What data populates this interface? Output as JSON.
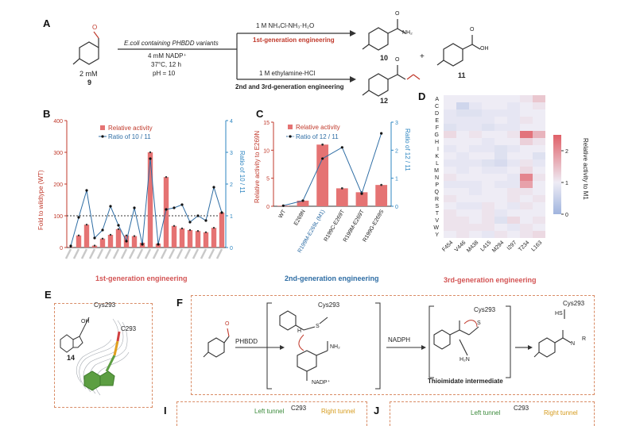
{
  "panel_labels": {
    "a": "A",
    "b": "B",
    "c": "C",
    "d": "D",
    "e": "E",
    "f": "F",
    "i": "I",
    "j": "J"
  },
  "panel_a": {
    "reactant_conc": "2 mM",
    "reactant_num": "9",
    "cond1": "E.coli containing PHBDD variants",
    "cond2": "4 mM NADP⁺",
    "cond3": "37°C, 12 h",
    "cond4": "pH = 10",
    "top_reagent": "1 M NH₄Cl-NH₃·H₂O",
    "top_label": "1st-generation engineering",
    "bottom_reagent": "1 M ethylamine-HCl",
    "bottom_label": "2nd and 3rd-generation engineering",
    "product_10": "10",
    "product_11": "11",
    "product_12": "12",
    "plus": "+",
    "nh2": "NH₂",
    "oh": "OH",
    "o": "O"
  },
  "panel_b": {
    "footer": "1st-generation engineering",
    "legend_bar": "Relative activity",
    "legend_line": "Ratio of 10 / 11",
    "ylabel_left": "Fold to wildtype (WT)",
    "ylabel_right": "Ratio of 10 / 11",
    "left_ticks": [
      "0",
      "100",
      "200",
      "300",
      "400"
    ],
    "right_ticks": [
      "0",
      "1",
      "2",
      "3",
      "4"
    ]
  },
  "panel_c": {
    "footer": "2nd-generation engineering",
    "legend_bar": "Relative activity",
    "legend_line": "Ratio of 12 / 11",
    "ylabel_left": "Relative activity to E269N",
    "ylabel_right": "Ratio of 12 / 11",
    "left_ticks": [
      "0",
      "5",
      "10",
      "15"
    ],
    "right_ticks": [
      "0",
      "1",
      "2",
      "3"
    ]
  },
  "panel_d": {
    "footer": "3rd-generation engineering",
    "colorbar_label": "Relative activity to M1",
    "colorbar_ticks": [
      "0",
      "1",
      "2"
    ]
  },
  "panel_e": {
    "compound": "14",
    "residue": "C293",
    "cys": "Cys293",
    "oh": "OH"
  },
  "panel_f": {
    "enzyme": "PHBDD",
    "cofactor": "NADPH",
    "nadp": "NADP⁺",
    "intermediate": "Thioimidate intermediate",
    "cys": "Cys293",
    "nh2": "NH₂",
    "o": "O",
    "h": "H",
    "s": "S",
    "hs": "HS",
    "r": "R",
    "h2n": "H₂N",
    "n_h": "N"
  },
  "panel_i": {
    "left": "Left tunnel",
    "residue": "C293",
    "right": "Right tunnel"
  },
  "panel_j": {
    "left": "Left tunnel",
    "residue": "C293",
    "right": "Right tunnel"
  },
  "chart_data": [
    {
      "type": "bar",
      "title": "",
      "ylabel": "Fold to wildtype (WT)",
      "y2label": "Ratio of 10 / 11",
      "ylim": [
        0,
        400
      ],
      "y2lim": [
        0,
        4
      ],
      "reference_line": 100,
      "categories_note": "x tick labels unreadable in source",
      "series": [
        {
          "name": "Relative activity",
          "kind": "bar",
          "values": [
            2,
            38,
            72,
            6,
            28,
            40,
            58,
            38,
            36,
            15,
            300,
            12,
            222,
            68,
            60,
            55,
            52,
            48,
            62,
            110
          ]
        },
        {
          "name": "Ratio of 10 / 11",
          "kind": "line",
          "values": [
            0.05,
            0.95,
            1.8,
            0.3,
            0.55,
            1.3,
            0.7,
            0.2,
            1.25,
            0.1,
            2.8,
            0.1,
            1.2,
            1.25,
            1.35,
            0.8,
            1.0,
            0.85,
            1.9,
            1.1
          ]
        }
      ]
    },
    {
      "type": "bar",
      "title": "",
      "ylabel": "Relative activity to E269N",
      "y2label": "Ratio of 12 / 11",
      "ylim": [
        0,
        15
      ],
      "y2lim": [
        0,
        3
      ],
      "categories": [
        "WT",
        "E269N",
        "R199M-E269L (M1)",
        "R199C-E269T",
        "R199M-E269T",
        "R199G-E269S"
      ],
      "series": [
        {
          "name": "Relative activity",
          "kind": "bar",
          "values": [
            0.1,
            1.0,
            11.0,
            3.2,
            2.5,
            3.8
          ]
        },
        {
          "name": "Ratio of 12 / 11",
          "kind": "line",
          "values": [
            0.02,
            0.2,
            1.7,
            2.1,
            0.45,
            2.6
          ]
        }
      ]
    },
    {
      "type": "heatmap",
      "title": "",
      "ylabel": "",
      "colorbar_label": "Relative activity to M1",
      "x": [
        "F454",
        "V446",
        "M438",
        "L415",
        "M294",
        "I297",
        "T234",
        "L163"
      ],
      "y": [
        "A",
        "C",
        "D",
        "E",
        "F",
        "G",
        "H",
        "I",
        "K",
        "L",
        "M",
        "N",
        "P",
        "Q",
        "R",
        "S",
        "T",
        "V",
        "W",
        "Y"
      ],
      "values": [
        [
          1.0,
          1.0,
          1.0,
          1.0,
          1.0,
          1.0,
          1.1,
          1.4
        ],
        [
          1.0,
          0.6,
          0.9,
          1.0,
          1.0,
          0.9,
          1.0,
          1.1
        ],
        [
          0.9,
          0.8,
          0.8,
          0.9,
          0.9,
          0.9,
          1.0,
          1.0
        ],
        [
          0.9,
          0.9,
          0.9,
          0.9,
          1.0,
          0.9,
          1.1,
          1.0
        ],
        [
          0.8,
          0.9,
          0.9,
          0.8,
          0.9,
          0.9,
          1.0,
          1.0
        ],
        [
          1.2,
          1.0,
          1.1,
          1.0,
          1.0,
          1.1,
          2.3,
          1.6
        ],
        [
          1.0,
          1.0,
          1.0,
          0.9,
          1.0,
          1.0,
          1.3,
          1.1
        ],
        [
          0.9,
          1.0,
          0.9,
          0.9,
          0.8,
          0.9,
          1.0,
          1.0
        ],
        [
          1.0,
          0.9,
          1.0,
          1.0,
          0.8,
          1.0,
          1.0,
          0.8
        ],
        [
          0.9,
          0.9,
          0.9,
          0.8,
          0.7,
          0.9,
          1.1,
          0.9
        ],
        [
          1.0,
          0.9,
          1.0,
          0.9,
          0.9,
          1.0,
          1.2,
          1.0
        ],
        [
          1.1,
          1.0,
          1.0,
          1.0,
          1.0,
          0.9,
          2.1,
          1.1
        ],
        [
          0.9,
          0.9,
          0.9,
          1.0,
          0.9,
          0.9,
          1.8,
          1.0
        ],
        [
          1.0,
          1.0,
          0.9,
          1.0,
          1.0,
          1.1,
          1.1,
          1.0
        ],
        [
          1.1,
          1.0,
          1.0,
          1.0,
          1.0,
          1.1,
          1.0,
          1.1
        ],
        [
          1.0,
          0.9,
          0.9,
          1.1,
          1.0,
          0.9,
          1.1,
          1.0
        ],
        [
          1.1,
          1.0,
          1.0,
          1.1,
          0.9,
          1.0,
          1.0,
          1.0
        ],
        [
          1.1,
          1.1,
          1.0,
          1.1,
          0.8,
          1.2,
          1.0,
          1.1
        ],
        [
          1.1,
          1.1,
          1.1,
          1.1,
          1.0,
          0.9,
          1.1,
          1.0
        ],
        [
          1.0,
          1.1,
          1.0,
          0.9,
          1.1,
          1.0,
          1.1,
          1.2
        ]
      ],
      "zlim": [
        0,
        2.5
      ]
    }
  ]
}
